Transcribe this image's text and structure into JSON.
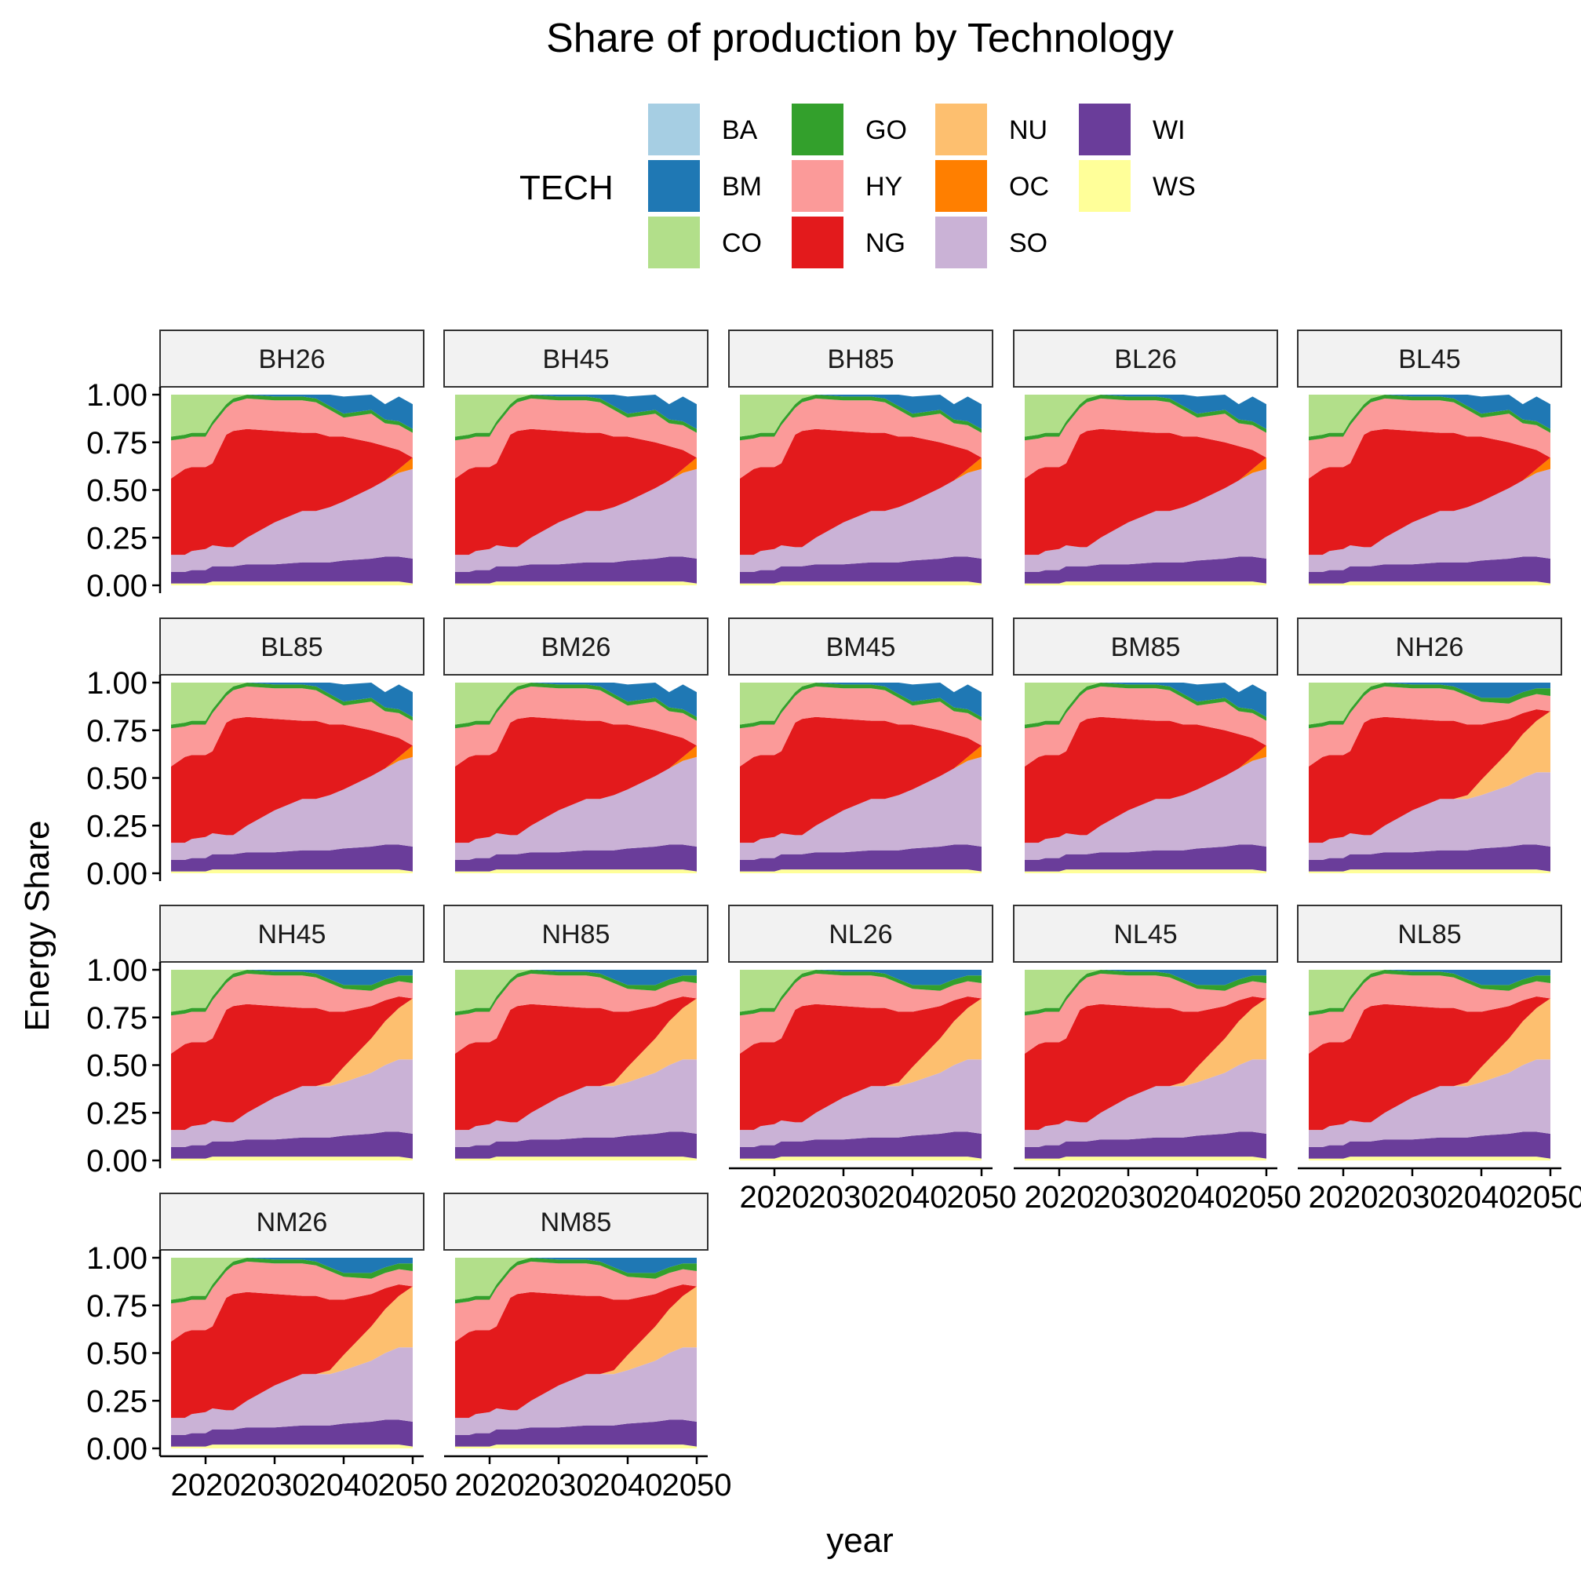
{
  "chart_data": {
    "type": "area",
    "stacked": true,
    "title": "Share of production by Technology",
    "xlabel": "year",
    "ylabel": "Energy Share",
    "xlim": [
      2015,
      2050
    ],
    "ylim": [
      0,
      1
    ],
    "x_ticks": [
      2020,
      2030,
      2040,
      2050
    ],
    "y_ticks": [
      0,
      0.25,
      0.5,
      0.75,
      1
    ],
    "y_tick_labels": [
      "0.00",
      "0.25",
      "0.50",
      "0.75",
      "1.00"
    ],
    "grid": false,
    "legend": {
      "title": "TECH",
      "position": "top",
      "items": [
        {
          "key": "BA",
          "color": "#A6CEE3"
        },
        {
          "key": "BM",
          "color": "#1F78B4"
        },
        {
          "key": "CO",
          "color": "#B2DF8A"
        },
        {
          "key": "GO",
          "color": "#33A02C"
        },
        {
          "key": "HY",
          "color": "#FB9A99"
        },
        {
          "key": "NG",
          "color": "#E31A1C"
        },
        {
          "key": "NU",
          "color": "#FDBF6F"
        },
        {
          "key": "OC",
          "color": "#FF7F00"
        },
        {
          "key": "SO",
          "color": "#CAB2D6"
        },
        {
          "key": "WI",
          "color": "#6A3D9A"
        },
        {
          "key": "WS",
          "color": "#FFFF99"
        }
      ]
    },
    "x": [
      2015,
      2017,
      2018,
      2020,
      2021,
      2023,
      2024,
      2026,
      2030,
      2034,
      2036,
      2038,
      2040,
      2044,
      2046,
      2048,
      2050
    ],
    "profiles": {
      "biomass": {
        "WS": [
          0.01,
          0.01,
          0.01,
          0.01,
          0.02,
          0.02,
          0.02,
          0.02,
          0.02,
          0.02,
          0.02,
          0.02,
          0.02,
          0.02,
          0.02,
          0.02,
          0.01
        ],
        "WI": [
          0.06,
          0.06,
          0.07,
          0.07,
          0.08,
          0.08,
          0.08,
          0.09,
          0.09,
          0.1,
          0.1,
          0.1,
          0.11,
          0.12,
          0.13,
          0.13,
          0.13
        ],
        "SO": [
          0.09,
          0.09,
          0.1,
          0.11,
          0.11,
          0.1,
          0.1,
          0.14,
          0.22,
          0.27,
          0.27,
          0.29,
          0.31,
          0.37,
          0.4,
          0.44,
          0.47
        ],
        "OC": [
          0,
          0,
          0,
          0,
          0,
          0,
          0,
          0,
          0,
          0,
          0,
          0,
          0,
          0,
          0,
          0.02,
          0.06
        ],
        "NU": [
          0,
          0,
          0,
          0,
          0,
          0,
          0,
          0,
          0,
          0,
          0,
          0,
          0,
          0,
          0,
          0,
          0
        ],
        "NG": [
          0.4,
          0.45,
          0.44,
          0.43,
          0.43,
          0.59,
          0.61,
          0.57,
          0.48,
          0.41,
          0.41,
          0.37,
          0.34,
          0.24,
          0.18,
          0.1,
          0.0
        ],
        "HY": [
          0.2,
          0.16,
          0.16,
          0.16,
          0.2,
          0.14,
          0.15,
          0.16,
          0.16,
          0.17,
          0.16,
          0.14,
          0.1,
          0.15,
          0.12,
          0.13,
          0.13
        ],
        "GO": [
          0.02,
          0.02,
          0.02,
          0.02,
          0.02,
          0.02,
          0.02,
          0.02,
          0.02,
          0.02,
          0.02,
          0.02,
          0.02,
          0.02,
          0.02,
          0.02,
          0.02
        ],
        "CO": [
          0.22,
          0.21,
          0.2,
          0.2,
          0.14,
          0.06,
          0.02,
          0,
          0,
          0,
          0,
          0,
          0,
          0,
          0,
          0,
          0
        ],
        "BM": [
          0,
          0,
          0,
          0,
          0,
          0,
          0,
          0.02,
          0.04,
          0.05,
          0.06,
          0.07,
          0.09,
          0.09,
          0.08,
          0.13,
          0.13
        ],
        "BA": [
          0,
          0,
          0,
          0,
          0,
          0,
          0,
          0,
          0,
          0,
          0,
          0,
          0,
          0,
          0,
          0,
          0
        ]
      },
      "nuclear": {
        "WS": [
          0.01,
          0.01,
          0.01,
          0.01,
          0.02,
          0.02,
          0.02,
          0.02,
          0.02,
          0.02,
          0.02,
          0.02,
          0.02,
          0.02,
          0.02,
          0.02,
          0.01
        ],
        "WI": [
          0.06,
          0.06,
          0.07,
          0.07,
          0.08,
          0.08,
          0.08,
          0.09,
          0.09,
          0.1,
          0.1,
          0.1,
          0.11,
          0.12,
          0.13,
          0.13,
          0.13
        ],
        "SO": [
          0.09,
          0.09,
          0.1,
          0.11,
          0.11,
          0.1,
          0.1,
          0.14,
          0.22,
          0.27,
          0.27,
          0.27,
          0.28,
          0.32,
          0.35,
          0.38,
          0.39
        ],
        "OC": [
          0,
          0,
          0,
          0,
          0,
          0,
          0,
          0,
          0,
          0,
          0,
          0,
          0,
          0,
          0,
          0,
          0
        ],
        "NU": [
          0,
          0,
          0,
          0,
          0,
          0,
          0,
          0,
          0,
          0,
          0,
          0.02,
          0.08,
          0.18,
          0.23,
          0.27,
          0.32
        ],
        "NG": [
          0.4,
          0.45,
          0.44,
          0.43,
          0.43,
          0.59,
          0.61,
          0.57,
          0.48,
          0.41,
          0.41,
          0.37,
          0.29,
          0.17,
          0.11,
          0.06,
          0.0
        ],
        "HY": [
          0.2,
          0.16,
          0.16,
          0.16,
          0.2,
          0.14,
          0.15,
          0.16,
          0.16,
          0.17,
          0.16,
          0.15,
          0.12,
          0.08,
          0.08,
          0.08,
          0.08
        ],
        "GO": [
          0.02,
          0.02,
          0.02,
          0.02,
          0.02,
          0.02,
          0.02,
          0.02,
          0.02,
          0.02,
          0.02,
          0.02,
          0.02,
          0.03,
          0.03,
          0.03,
          0.04
        ],
        "CO": [
          0.22,
          0.21,
          0.2,
          0.2,
          0.14,
          0.06,
          0.02,
          0,
          0,
          0,
          0,
          0,
          0,
          0,
          0,
          0,
          0
        ],
        "BM": [
          0,
          0,
          0,
          0,
          0,
          0,
          0,
          0,
          0.01,
          0.01,
          0.02,
          0.05,
          0.08,
          0.08,
          0.05,
          0.03,
          0.03
        ],
        "BA": [
          0,
          0,
          0,
          0,
          0,
          0,
          0,
          0,
          0,
          0,
          0,
          0,
          0,
          0,
          0,
          0,
          0
        ]
      }
    },
    "panels": [
      {
        "label": "BH26",
        "profile": "biomass"
      },
      {
        "label": "BH45",
        "profile": "biomass"
      },
      {
        "label": "BH85",
        "profile": "biomass"
      },
      {
        "label": "BL26",
        "profile": "biomass"
      },
      {
        "label": "BL45",
        "profile": "biomass"
      },
      {
        "label": "BL85",
        "profile": "biomass"
      },
      {
        "label": "BM26",
        "profile": "biomass"
      },
      {
        "label": "BM45",
        "profile": "biomass"
      },
      {
        "label": "BM85",
        "profile": "biomass"
      },
      {
        "label": "NH26",
        "profile": "nuclear"
      },
      {
        "label": "NH45",
        "profile": "nuclear"
      },
      {
        "label": "NH85",
        "profile": "nuclear"
      },
      {
        "label": "NL26",
        "profile": "nuclear"
      },
      {
        "label": "NL45",
        "profile": "nuclear"
      },
      {
        "label": "NL85",
        "profile": "nuclear"
      },
      {
        "label": "NM26",
        "profile": "nuclear"
      },
      {
        "label": "NM85",
        "profile": "nuclear"
      }
    ]
  }
}
